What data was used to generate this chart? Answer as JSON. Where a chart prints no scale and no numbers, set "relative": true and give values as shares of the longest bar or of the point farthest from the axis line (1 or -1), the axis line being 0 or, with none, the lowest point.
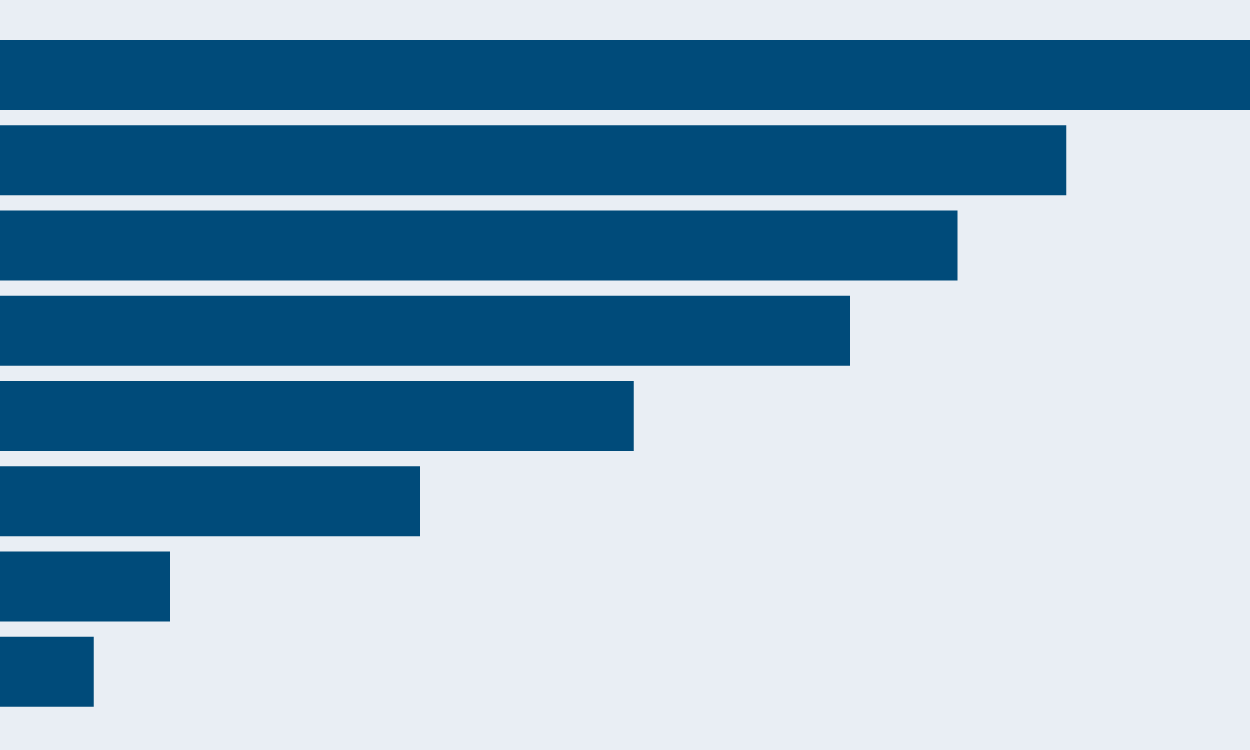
{
  "chart_data": {
    "type": "bar",
    "orientation": "horizontal",
    "relative": true,
    "categories": [
      null,
      null,
      null,
      null,
      null,
      null,
      null,
      null
    ],
    "values": [
      1,
      0.853,
      0.766,
      0.68,
      0.507,
      0.336,
      0.136,
      0.075
    ],
    "color": "#004b7a"
  }
}
